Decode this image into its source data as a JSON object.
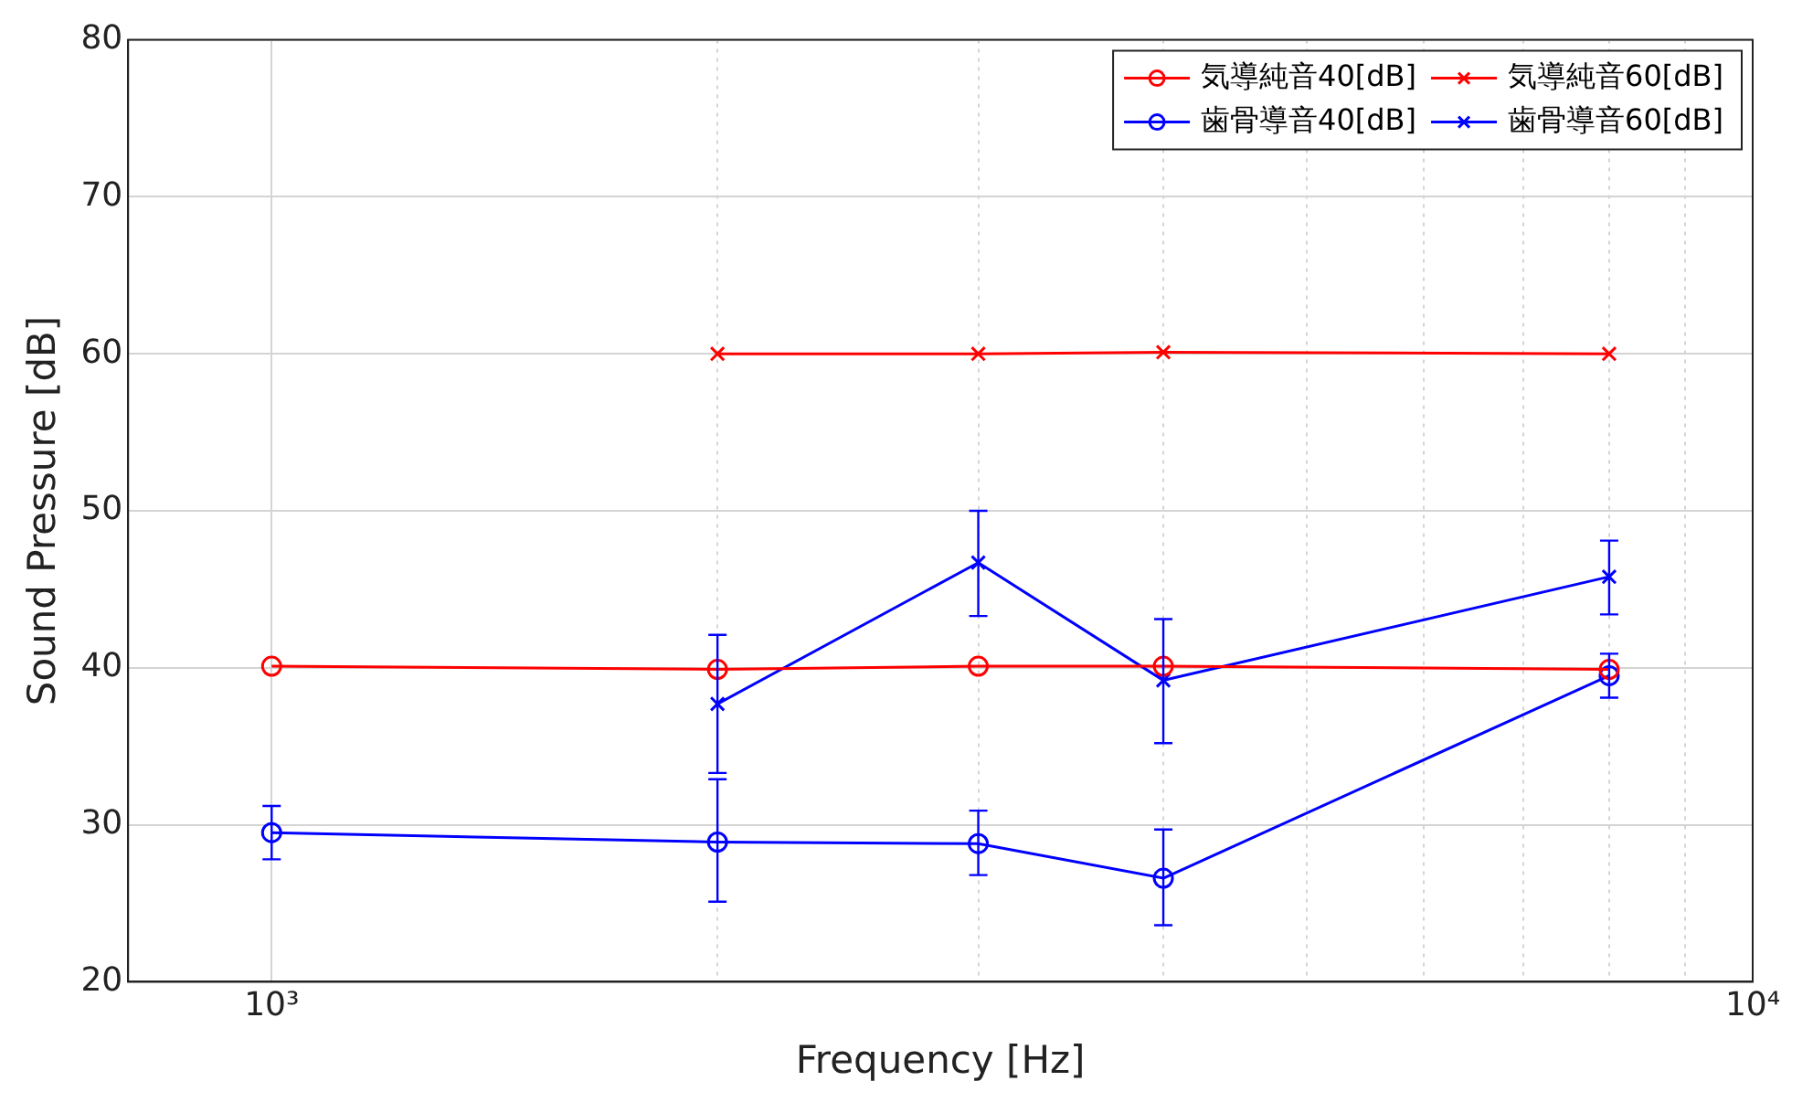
{
  "chart_data": {
    "type": "line",
    "xlabel": "Frequency [Hz]",
    "ylabel": "Sound Pressure [dB]",
    "log": "x",
    "xlim": [
      800,
      10000
    ],
    "xticks": [
      {
        "value": 1000,
        "label": "10³"
      },
      {
        "value": 2000,
        "label": null
      },
      {
        "value": 3000,
        "label": null
      },
      {
        "value": 4000,
        "label": null
      },
      {
        "value": 5000,
        "label": null
      },
      {
        "value": 6000,
        "label": null
      },
      {
        "value": 7000,
        "label": null
      },
      {
        "value": 8000,
        "label": null
      },
      {
        "value": 9000,
        "label": null
      },
      {
        "value": 10000,
        "label": "10⁴"
      }
    ],
    "ylim": [
      20,
      80
    ],
    "yticks": [
      20,
      30,
      40,
      50,
      60,
      70,
      80
    ],
    "grid": true,
    "legend": "top right",
    "line_style": "solid",
    "series": [
      {
        "name": "気導純音40[dB]",
        "color": "#ff0000",
        "marker": "circle",
        "x": [
          1000,
          2000,
          3000,
          4000,
          8000
        ],
        "values": [
          40.1,
          39.9,
          40.1,
          40.1,
          39.9
        ]
      },
      {
        "name": "気導純音60[dB]",
        "color": "#ff0000",
        "marker": "cross",
        "x": [
          2000,
          3000,
          4000,
          8000
        ],
        "values": [
          60,
          60,
          60.1,
          60
        ]
      },
      {
        "name": "歯骨導音40[dB]",
        "color": "#0000ff",
        "marker": "circle",
        "x": [
          1000,
          2000,
          3000,
          4000,
          8000
        ],
        "values": [
          29.5,
          28.9,
          28.8,
          26.6,
          39.5
        ],
        "errors": [
          [
            27.8,
            31.2
          ],
          [
            25.1,
            32.9
          ],
          [
            26.8,
            30.9
          ],
          [
            23.6,
            29.7
          ],
          [
            38.1,
            40.9
          ]
        ]
      },
      {
        "name": "歯骨導音60[dB]",
        "color": "#0000ff",
        "marker": "cross",
        "x": [
          2000,
          3000,
          4000,
          8000
        ],
        "values": [
          37.7,
          46.7,
          39.2,
          45.8
        ],
        "errors": [
          [
            33.3,
            42.1
          ],
          [
            43.3,
            50.0
          ],
          [
            35.2,
            43.1
          ],
          [
            43.4,
            48.1
          ]
        ]
      }
    ]
  }
}
